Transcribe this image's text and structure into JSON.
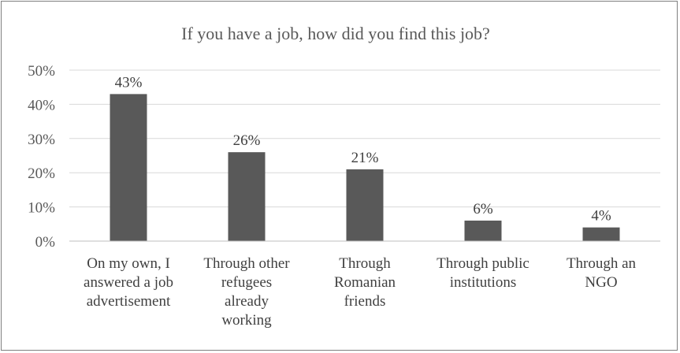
{
  "chart_data": {
    "type": "bar",
    "title": "If you have a job, how did you find this job?",
    "categories": [
      [
        "On my own, I",
        "answered a job",
        "advertisement"
      ],
      [
        "Through other",
        "refugees",
        "already",
        "working"
      ],
      [
        "Through",
        "Romanian",
        "friends"
      ],
      [
        "Through public",
        "institutions"
      ],
      [
        "Through an",
        "NGO"
      ]
    ],
    "values": [
      43,
      26,
      21,
      6,
      4
    ],
    "data_labels": [
      "43%",
      "26%",
      "21%",
      "6%",
      "4%"
    ],
    "ylim": [
      0,
      50
    ],
    "yticks": [
      0,
      10,
      20,
      30,
      40,
      50
    ],
    "ytick_labels": [
      "0%",
      "10%",
      "20%",
      "30%",
      "40%",
      "50%"
    ],
    "grid": true,
    "legend": "none",
    "colors": {
      "bar": "#595959",
      "grid": "#d9d9d9",
      "axis": "#bfbfbf"
    }
  }
}
